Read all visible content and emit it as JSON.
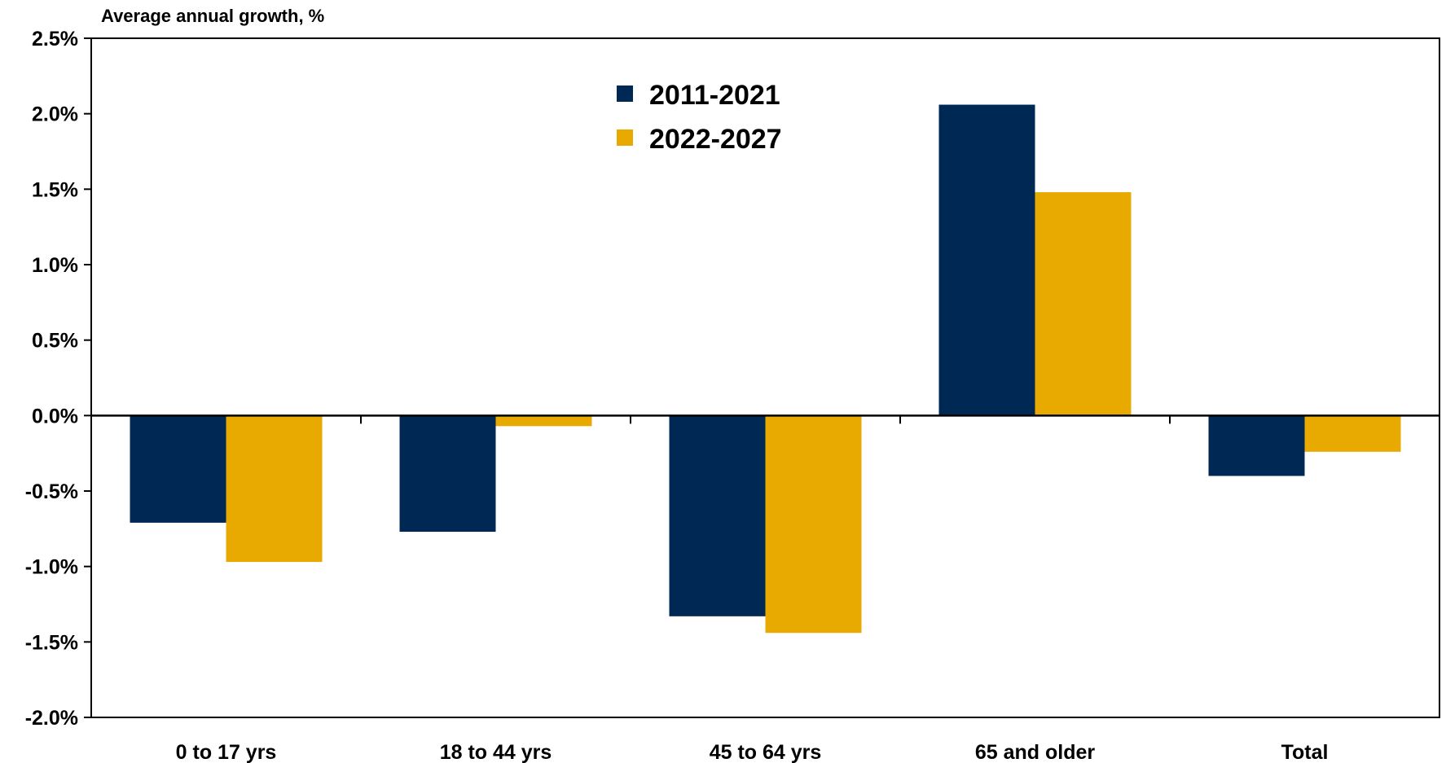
{
  "chart_data": {
    "type": "bar",
    "ylabel": "Average annual growth, %",
    "xlabel": "",
    "categories": [
      "0 to 17 yrs",
      "18 to 44 yrs",
      "45 to 64 yrs",
      "65 and older",
      "Total"
    ],
    "series": [
      {
        "name": "2011-2021",
        "color": "#002855",
        "values": [
          -0.71,
          -0.77,
          -1.33,
          2.06,
          -0.4
        ]
      },
      {
        "name": "2022-2027",
        "color": "#E8AA00",
        "values": [
          -0.97,
          -0.07,
          -1.44,
          1.48,
          -0.24
        ]
      }
    ],
    "ylim": [
      -2.0,
      2.5
    ],
    "ytick_values": [
      2.5,
      2.0,
      1.5,
      1.0,
      0.5,
      0.0,
      -0.5,
      -1.0,
      -1.5,
      -2.0
    ],
    "ytick_labels": [
      "2.5%",
      "2.0%",
      "1.5%",
      "1.0%",
      "0.5%",
      "0.0%",
      "-0.5%",
      "-1.0%",
      "-1.5%",
      "-2.0%"
    ],
    "grid": false,
    "legend_position": "top-center"
  }
}
